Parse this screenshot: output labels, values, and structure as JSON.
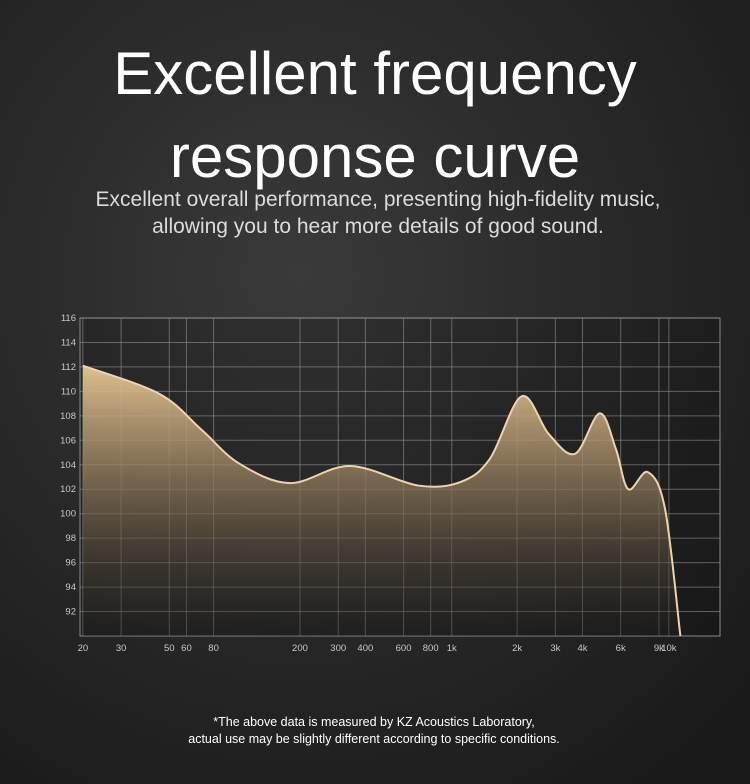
{
  "chart_data": {
    "type": "line",
    "title_lines": [
      "Excellent frequency",
      "response curve"
    ],
    "subtitle_lines": [
      "Excellent overall performance, presenting high-fidelity music,",
      "allowing you to hear more details of good sound."
    ],
    "footnote_lines": [
      "*The above data is measured by KZ Acoustics Laboratory,",
      "actual use may be slightly different according to specific conditions."
    ],
    "x": [
      20,
      45,
      70,
      105,
      180,
      340,
      700,
      1100,
      1500,
      2100,
      2800,
      3700,
      4800,
      5700,
      6500,
      8000,
      9600,
      11300
    ],
    "series": [
      {
        "color": "#f0d3a8",
        "values": [
          112.1,
          109.8,
          106.9,
          104.1,
          102.5,
          103.9,
          102.3,
          102.6,
          104.5,
          109.6,
          106.5,
          104.9,
          108.2,
          105.3,
          102,
          103.4,
          100.4,
          90
        ]
      }
    ],
    "xscale": "log",
    "xlim": [
      19.4,
      17200
    ],
    "xticks": [
      20,
      30,
      50,
      60,
      80,
      200,
      300,
      400,
      600,
      800,
      {
        "value": 1000,
        "label": "1k"
      },
      {
        "value": 2000,
        "label": "2k"
      },
      {
        "value": 3000,
        "label": "3k"
      },
      {
        "value": 4000,
        "label": "4k"
      },
      {
        "value": 6000,
        "label": "6k"
      },
      {
        "value": 9000,
        "label": "9k"
      },
      {
        "value": 10000,
        "label": "10k"
      }
    ],
    "ylim": [
      90,
      116
    ],
    "yticks": [
      92,
      94,
      96,
      98,
      100,
      102,
      104,
      106,
      108,
      110,
      112,
      114,
      116
    ],
    "grid": true
  }
}
